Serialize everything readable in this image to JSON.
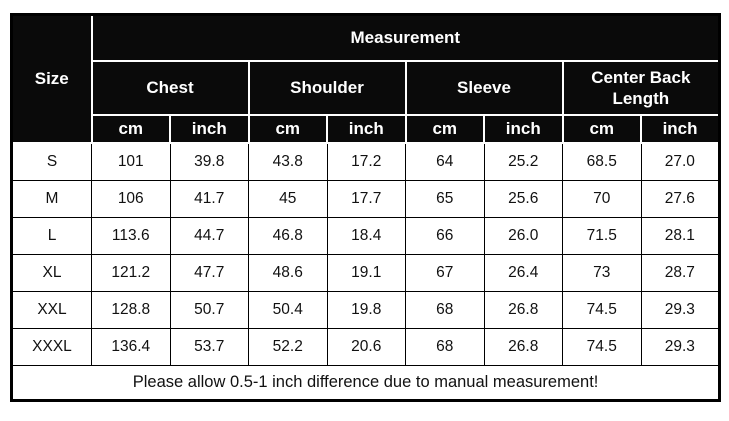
{
  "table": {
    "corner_label": "Size",
    "top_header": "Measurement",
    "groups": [
      {
        "label": "Chest"
      },
      {
        "label": "Shoulder"
      },
      {
        "label": "Sleeve"
      },
      {
        "label": "Center Back Length"
      }
    ],
    "unit_headers": [
      "cm",
      "inch",
      "cm",
      "inch",
      "cm",
      "inch",
      "cm",
      "inch"
    ],
    "rows": [
      {
        "size": "S",
        "values": [
          "101",
          "39.8",
          "43.8",
          "17.2",
          "64",
          "25.2",
          "68.5",
          "27.0"
        ]
      },
      {
        "size": "M",
        "values": [
          "106",
          "41.7",
          "45",
          "17.7",
          "65",
          "25.6",
          "70",
          "27.6"
        ]
      },
      {
        "size": "L",
        "values": [
          "113.6",
          "44.7",
          "46.8",
          "18.4",
          "66",
          "26.0",
          "71.5",
          "28.1"
        ]
      },
      {
        "size": "XL",
        "values": [
          "121.2",
          "47.7",
          "48.6",
          "19.1",
          "67",
          "26.4",
          "73",
          "28.7"
        ]
      },
      {
        "size": "XXL",
        "values": [
          "128.8",
          "50.7",
          "50.4",
          "19.8",
          "68",
          "26.8",
          "74.5",
          "29.3"
        ]
      },
      {
        "size": "XXXL",
        "values": [
          "136.4",
          "53.7",
          "52.2",
          "20.6",
          "68",
          "26.8",
          "74.5",
          "29.3"
        ]
      }
    ],
    "footer_note": "Please allow 0.5-1 inch difference due to manual measurement!"
  },
  "colors": {
    "header_bg": "#0a0a0a",
    "header_text": "#ffffff",
    "body_text": "#111111",
    "border": "#000000",
    "page_bg": "#ffffff"
  }
}
